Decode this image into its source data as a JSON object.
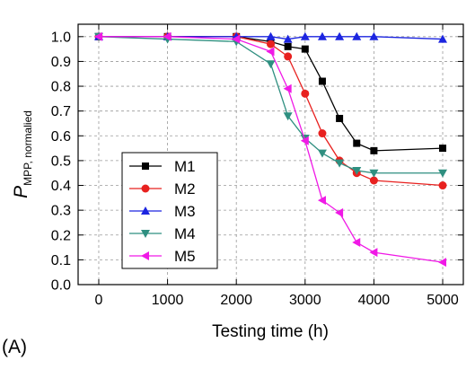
{
  "panel_label": "(A)",
  "chart_data": {
    "type": "line",
    "xlabel": "Testing time (h)",
    "ylabel_main": "P",
    "ylabel_sub": "MPP, normalied",
    "xlim": [
      -300,
      5300
    ],
    "ylim": [
      0.0,
      1.05
    ],
    "xticks": [
      0,
      1000,
      2000,
      3000,
      4000,
      5000
    ],
    "yticks": [
      0.0,
      0.1,
      0.2,
      0.3,
      0.4,
      0.5,
      0.6,
      0.7,
      0.8,
      0.9,
      1.0
    ],
    "grid": true,
    "legend_position": "bottom-left",
    "series": [
      {
        "name": "M1",
        "color": "#000000",
        "marker": "square",
        "x": [
          0,
          1000,
          2000,
          2500,
          2750,
          3000,
          3250,
          3500,
          3750,
          4000,
          5000
        ],
        "y": [
          1.0,
          1.0,
          1.0,
          0.98,
          0.96,
          0.95,
          0.82,
          0.67,
          0.57,
          0.54,
          0.55
        ]
      },
      {
        "name": "M2",
        "color": "#e8211f",
        "marker": "circle",
        "x": [
          0,
          1000,
          2000,
          2500,
          2750,
          3000,
          3250,
          3500,
          3750,
          4000,
          5000
        ],
        "y": [
          1.0,
          1.0,
          1.0,
          0.97,
          0.92,
          0.77,
          0.61,
          0.5,
          0.45,
          0.42,
          0.4
        ]
      },
      {
        "name": "M3",
        "color": "#1c25e0",
        "marker": "triangle-up",
        "x": [
          0,
          1000,
          2000,
          2500,
          2750,
          3000,
          3250,
          3500,
          3750,
          4000,
          5000
        ],
        "y": [
          1.0,
          1.0,
          1.0,
          1.0,
          0.99,
          1.0,
          1.0,
          1.0,
          1.0,
          1.0,
          0.99
        ]
      },
      {
        "name": "M4",
        "color": "#2f8f80",
        "marker": "triangle-down",
        "x": [
          0,
          1000,
          2000,
          2500,
          2750,
          3000,
          3250,
          3500,
          3750,
          4000,
          5000
        ],
        "y": [
          1.0,
          0.99,
          0.98,
          0.89,
          0.68,
          0.59,
          0.53,
          0.49,
          0.46,
          0.45,
          0.45
        ]
      },
      {
        "name": "M5",
        "color": "#f019e6",
        "marker": "triangle-left",
        "x": [
          0,
          1000,
          2000,
          2500,
          2750,
          3000,
          3250,
          3500,
          3750,
          4000,
          5000
        ],
        "y": [
          1.0,
          1.0,
          0.99,
          0.94,
          0.79,
          0.58,
          0.34,
          0.29,
          0.17,
          0.13,
          0.09
        ]
      }
    ]
  }
}
